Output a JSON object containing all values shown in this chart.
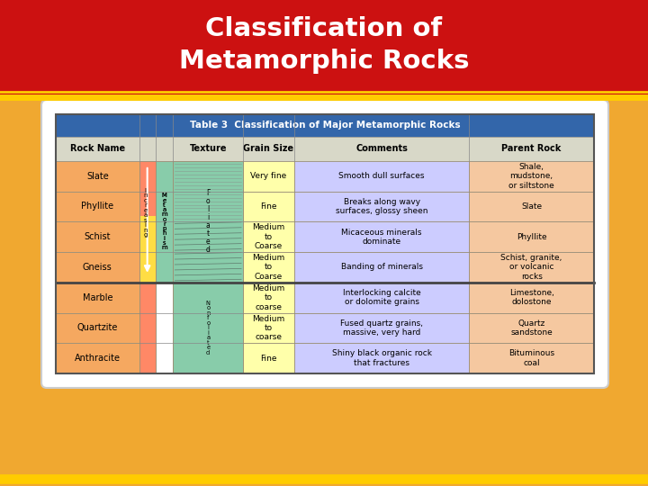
{
  "title": "Classification of\nMetamorphic Rocks",
  "title_bg": "#cc1111",
  "bg_color": "#f0a830",
  "table_title": "Table 3  Classification of Major Metamorphic Rocks",
  "table_title_bg": "#3366aa",
  "header_bg": "#d8d8c8",
  "col_headers": [
    "Rock Name",
    "Texture",
    "Grain Size",
    "Comments",
    "Parent Rock"
  ],
  "rows": [
    {
      "rock": "Slate",
      "grain": "Very fine",
      "comments": "Smooth dull surfaces",
      "parent": "Shale,\nmudstone,\nor siltstone",
      "group": "foliated",
      "tex_color": "#b8bec8"
    },
    {
      "rock": "Phyllite",
      "grain": "Fine",
      "comments": "Breaks along wavy\nsurfaces, glossy sheen",
      "parent": "Slate",
      "group": "foliated",
      "tex_color": "#a0a8a0"
    },
    {
      "rock": "Schist",
      "grain": "Medium\nto\nCoarse",
      "comments": "Micaceous minerals\ndominate",
      "parent": "Phyllite",
      "group": "foliated",
      "tex_color": "#707878"
    },
    {
      "rock": "Gneiss",
      "grain": "Medium\nto\nCoarse",
      "comments": "Banding of minerals",
      "parent": "Schist, granite,\nor volcanic\nrocks",
      "group": "foliated",
      "tex_color": "#909080"
    },
    {
      "rock": "Marble",
      "grain": "Medium\nto\ncoarse",
      "comments": "Interlocking calcite\nor dolomite grains",
      "parent": "Limestone,\ndolostone",
      "group": "nonfoliated",
      "tex_color": "#c0c0c0"
    },
    {
      "rock": "Quartzite",
      "grain": "Medium\nto\ncoarse",
      "comments": "Fused quartz grains,\nmassive, very hard",
      "parent": "Quartz\nsandstone",
      "group": "nonfoliated",
      "tex_color": "#d0d0d0"
    },
    {
      "rock": "Anthracite",
      "grain": "Fine",
      "comments": "Shiny black organic rock\nthat fractures",
      "parent": "Bituminous\ncoal",
      "group": "nonfoliated",
      "tex_color": "#111111"
    }
  ],
  "rock_name_bg": "#f5a860",
  "grain_bg": "#ffffaa",
  "comments_bg": "#ccccff",
  "parent_bg": "#f5c8a0",
  "foliated_bg": "#88ccaa",
  "nonfoliated_bg": "#88ccaa",
  "increasing_bg": "#ff8866",
  "arrow_bg": "#ffdd44",
  "row_divider": "#ddaa44",
  "card_bg": "#ffffff"
}
